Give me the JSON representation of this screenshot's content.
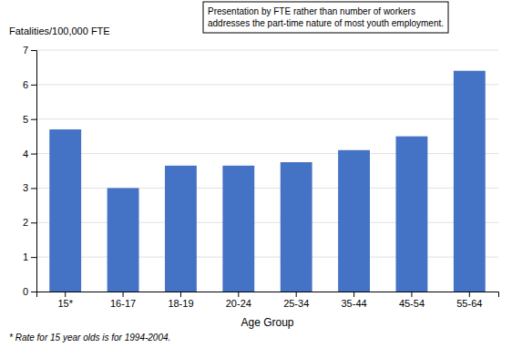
{
  "chart_data": {
    "type": "bar",
    "categories": [
      "15*",
      "16-17",
      "18-19",
      "20-24",
      "25-34",
      "35-44",
      "45-54",
      "55-64"
    ],
    "values": [
      4.7,
      3.0,
      3.65,
      3.65,
      3.75,
      4.1,
      4.5,
      6.4
    ],
    "color": "#4472C4",
    "xlabel": "Age Group",
    "ylabel": "Fatalities/100,000 FTE",
    "ylim": [
      0,
      7
    ],
    "yticks": [
      0,
      1,
      2,
      3,
      4,
      5,
      6,
      7
    ],
    "grid": true,
    "annotation": [
      "Presentation by FTE rather than number of workers",
      "addresses the part-time nature of most youth employment."
    ],
    "footnote": "* Rate for 15 year olds is for 1994-2004."
  }
}
